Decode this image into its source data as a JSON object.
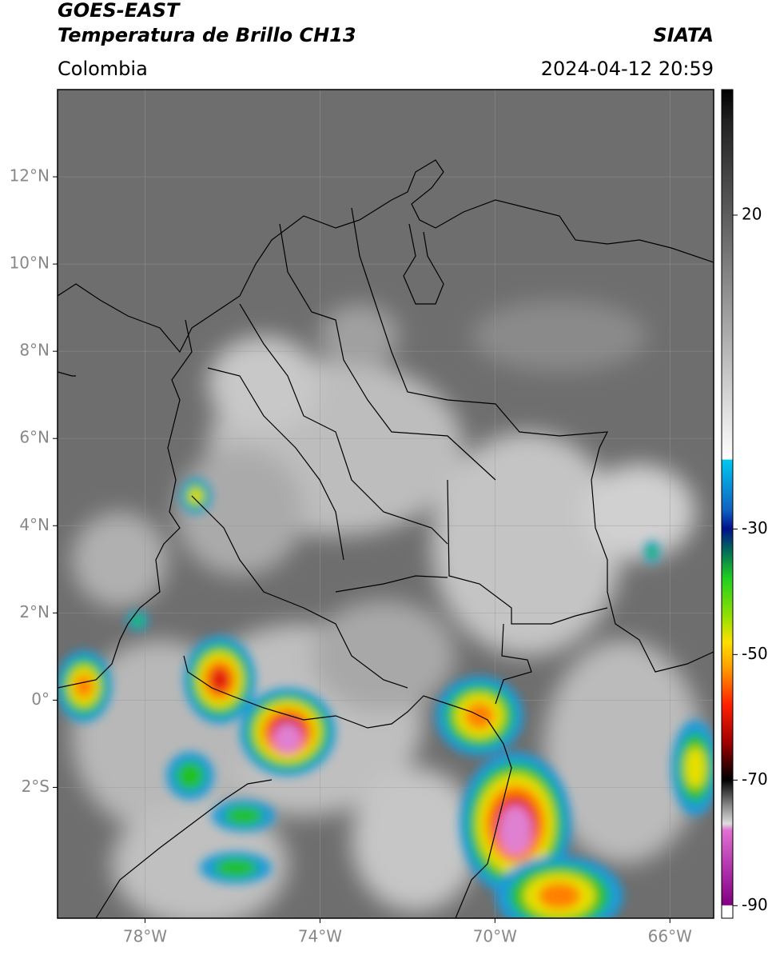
{
  "header": {
    "title": "GOES-EAST",
    "subtitle": "Temperatura de Brillo CH13",
    "source": "SIATA",
    "region": "Colombia",
    "datetime": "2024-04-12 20:59"
  },
  "map": {
    "xlim": [
      -80,
      -65
    ],
    "ylim": [
      -5,
      14
    ],
    "xticks": [
      {
        "value": -78,
        "label": "78°W"
      },
      {
        "value": -74,
        "label": "74°W"
      },
      {
        "value": -70,
        "label": "70°W"
      },
      {
        "value": -66,
        "label": "66°W"
      }
    ],
    "yticks": [
      {
        "value": 12,
        "label": "12°N"
      },
      {
        "value": 10,
        "label": "10°N"
      },
      {
        "value": 8,
        "label": "8°N"
      },
      {
        "value": 6,
        "label": "6°N"
      },
      {
        "value": 4,
        "label": "4°N"
      },
      {
        "value": 2,
        "label": "2°N"
      },
      {
        "value": 0,
        "label": "0°"
      },
      {
        "value": -2,
        "label": "2°S"
      }
    ],
    "grid": true
  },
  "colorbar": {
    "ylim": [
      -92,
      40
    ],
    "yticks": [
      20,
      -30,
      -50,
      -70,
      -90
    ]
  }
}
